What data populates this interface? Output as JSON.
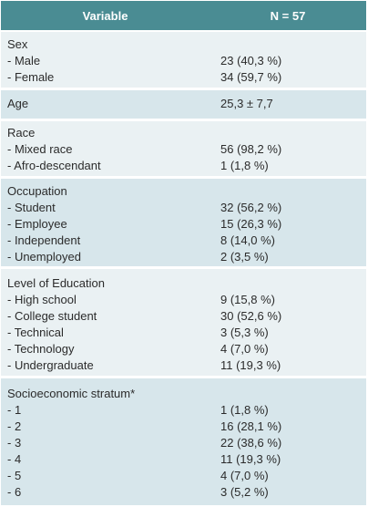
{
  "header": {
    "variable": "Variable",
    "n": "N = 57"
  },
  "sections": [
    {
      "rows": [
        {
          "label": "Sex",
          "value": ""
        },
        {
          "label": "- Male",
          "value": "23 (40,3 %)"
        },
        {
          "label": "- Female",
          "value": "34 (59,7 %)"
        }
      ]
    },
    {
      "rows": [
        {
          "label": "Age",
          "value": "25,3 ± 7,7"
        }
      ]
    },
    {
      "rows": [
        {
          "label": "Race",
          "value": ""
        },
        {
          "label": "- Mixed race",
          "value": "56 (98,2 %)"
        },
        {
          "label": "- Afro-descendant",
          "value": "1 (1,8 %)"
        }
      ]
    },
    {
      "rows": [
        {
          "label": "Occupation",
          "value": ""
        },
        {
          "label": "- Student",
          "value": "32 (56,2 %)"
        },
        {
          "label": "- Employee",
          "value": "15 (26,3 %)"
        },
        {
          "label": "- Independent",
          "value": "8 (14,0 %)"
        },
        {
          "label": "- Unemployed",
          "value": "2 (3,5 %)"
        }
      ]
    },
    {
      "rows": [
        {
          "label": "Level of Education",
          "value": ""
        },
        {
          "label": "- High school",
          "value": "9 (15,8 %)"
        },
        {
          "label": "- College student",
          "value": "30 (52,6 %)"
        },
        {
          "label": "- Technical",
          "value": "3 (5,3 %)"
        },
        {
          "label": "- Technology",
          "value": "4 (7,0 %)"
        },
        {
          "label": "- Undergraduate",
          "value": "11 (19,3 %)"
        }
      ]
    },
    {
      "rows": [
        {
          "label": "Socioeconomic stratum*",
          "value": ""
        },
        {
          "label": "- 1",
          "value": "1 (1,8 %)"
        },
        {
          "label": "- 2",
          "value": "16 (28,1 %)"
        },
        {
          "label": "- 3",
          "value": "22 (38,6 %)"
        },
        {
          "label": "- 4",
          "value": "11 (19,3 %)"
        },
        {
          "label": "- 5",
          "value": "4 (7,0 %)"
        },
        {
          "label": "- 6",
          "value": "3 (5,2 %)"
        }
      ]
    }
  ]
}
